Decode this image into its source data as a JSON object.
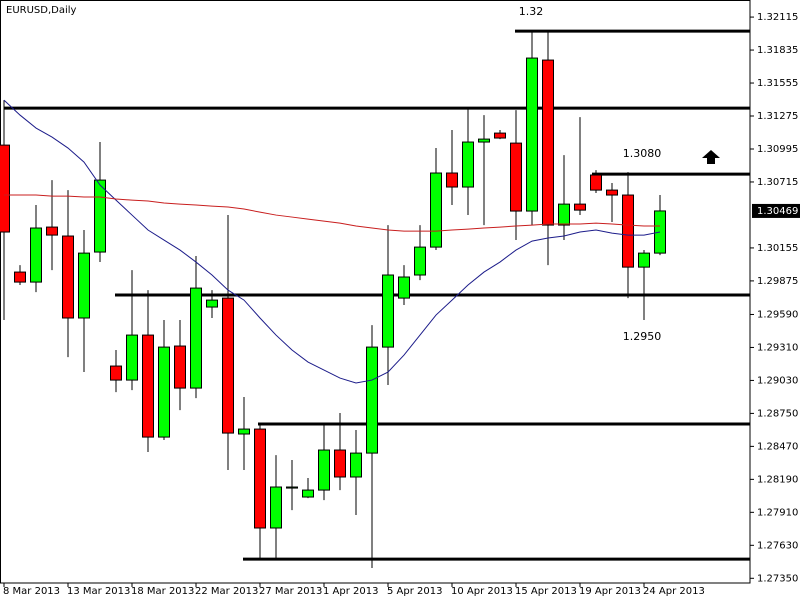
{
  "chart_data": {
    "type": "candlestick",
    "title": "EURUSD,Daily",
    "categories": [
      "8 Mar 2013",
      null,
      null,
      null,
      "13 Mar 2013",
      null,
      null,
      null,
      "18 Mar 2013",
      null,
      null,
      null,
      "22 Mar 2013",
      null,
      null,
      null,
      "27 Mar 2013",
      null,
      null,
      null,
      "1 Apr 2013",
      null,
      null,
      null,
      "5 Apr 2013",
      null,
      null,
      null,
      "10 Apr 2013",
      null,
      null,
      null,
      "15 Apr 2013",
      null,
      null,
      null,
      "19 Apr 2013",
      null,
      null,
      null,
      "24 Apr 2013",
      null
    ],
    "open": [
      1.31028,
      1.2995,
      1.29865,
      1.30332,
      1.30256,
      1.2956,
      1.3012,
      1.29152,
      1.29033,
      1.29415,
      1.28549,
      1.29322,
      1.28965,
      1.29653,
      1.29729,
      1.28575,
      1.28617,
      1.27777,
      1.28116,
      1.2804,
      1.28099,
      1.28439,
      1.2821,
      1.28413,
      1.29313,
      1.29729,
      1.29925,
      1.30162,
      1.30791,
      1.30672,
      1.31054,
      1.3113,
      1.31045,
      1.30468,
      1.3175,
      1.30349,
      1.30527,
      1.30774,
      1.30646,
      1.30604,
      1.29992,
      1.30111
    ],
    "high": [
      1.3141,
      1.30009,
      1.30519,
      1.30731,
      1.30646,
      1.30307,
      1.31054,
      1.29288,
      1.29967,
      1.29797,
      1.29543,
      1.29543,
      1.30086,
      1.29797,
      1.30434,
      1.28889,
      1.28651,
      1.28396,
      1.28354,
      1.28201,
      1.28651,
      1.28753,
      1.28609,
      1.295,
      1.30349,
      1.30009,
      1.30349,
      1.31003,
      1.31156,
      1.31342,
      1.31283,
      1.31156,
      1.31325,
      1.31988,
      1.31988,
      1.30943,
      1.31266,
      1.30816,
      1.30706,
      1.30799,
      1.30137,
      1.30604
    ],
    "low": [
      1.29543,
      1.2984,
      1.2978,
      1.29967,
      1.29228,
      1.29101,
      1.30035,
      1.28931,
      1.28948,
      1.28422,
      1.28524,
      1.28778,
      1.2888,
      1.2956,
      1.28269,
      1.28269,
      1.27505,
      1.27522,
      1.27929,
      1.28031,
      1.28014,
      1.28099,
      1.27887,
      1.27437,
      1.28991,
      1.2967,
      1.29882,
      1.30137,
      1.30519,
      1.30434,
      1.30349,
      1.31079,
      1.30222,
      1.30349,
      1.30009,
      1.30222,
      1.30434,
      1.30621,
      1.30375,
      1.29729,
      1.29543,
      1.30094
    ],
    "close": [
      1.3029,
      1.29865,
      1.30324,
      1.30264,
      1.2956,
      1.30111,
      1.30731,
      1.29033,
      1.29415,
      1.28549,
      1.29313,
      1.28965,
      1.29814,
      1.29712,
      1.28583,
      1.28617,
      1.27777,
      1.28125,
      1.28125,
      1.28099,
      1.28439,
      1.2821,
      1.28413,
      1.29313,
      1.29925,
      1.29908,
      1.30162,
      1.30791,
      1.30672,
      1.31054,
      1.31079,
      1.31088,
      1.30468,
      1.31767,
      1.30349,
      1.30527,
      1.30476,
      1.30646,
      1.30604,
      1.29992,
      1.30111,
      1.30469
    ],
    "up_color": "#00ff00",
    "down_color": "#ff0000",
    "moving_averages": [
      {
        "color": "#1c1c8a",
        "values": [
          1.3141,
          1.31283,
          1.31173,
          1.31096,
          1.31003,
          1.30884,
          1.30689,
          1.30561,
          1.30434,
          1.30307,
          1.30222,
          1.30137,
          1.30035,
          1.29925,
          1.29797,
          1.29712,
          1.2956,
          1.29415,
          1.29288,
          1.29186,
          1.29118,
          1.2905,
          1.29008,
          1.29033,
          1.29101,
          1.29245,
          1.29415,
          1.29585,
          1.29712,
          1.2984,
          1.2995,
          1.30035,
          1.30137,
          1.30213,
          1.30239,
          1.30256,
          1.3029,
          1.30307,
          1.30281,
          1.30264,
          1.30264,
          1.3029
        ]
      },
      {
        "color": "#c81e1e",
        "values": [
          1.30604,
          1.30604,
          1.30604,
          1.30595,
          1.30595,
          1.30587,
          1.30587,
          1.3057,
          1.30561,
          1.30553,
          1.30536,
          1.30527,
          1.30519,
          1.3051,
          1.30502,
          1.30485,
          1.30459,
          1.30434,
          1.30417,
          1.304,
          1.30383,
          1.30366,
          1.30341,
          1.30324,
          1.30307,
          1.30298,
          1.30298,
          1.30298,
          1.30307,
          1.30315,
          1.30324,
          1.30332,
          1.30341,
          1.30349,
          1.30358,
          1.30358,
          1.30358,
          1.30366,
          1.30358,
          1.30349,
          1.30341,
          1.30341
        ]
      }
    ],
    "levels": [
      1.31996,
      1.31342,
      1.30782,
      1.29755,
      1.2866,
      1.27513
    ],
    "annotations": [
      "1.32",
      "1.3080",
      "1.2950"
    ],
    "last_price_label": "1.30469",
    "ylim": [
      1.2731,
      1.3226
    ],
    "yticks": [
      1.32115,
      1.31835,
      1.31555,
      1.31275,
      1.30995,
      1.30715,
      1.30155,
      1.29875,
      {
        "value": 1.2959,
        "label": "1.29590"
      },
      {
        "value": 1.2931,
        "label": "1.29310"
      },
      {
        "value": 1.2903,
        "label": "1.29030"
      },
      {
        "value": 1.2875,
        "label": "1.28750"
      },
      {
        "value": 1.2847,
        "label": "1.28470"
      },
      {
        "value": 1.2819,
        "label": "1.28190"
      },
      {
        "value": 1.2791,
        "label": "1.27910"
      },
      {
        "value": 1.2763,
        "label": "1.27630"
      },
      {
        "value": 1.2735,
        "label": "1.27350"
      }
    ]
  }
}
